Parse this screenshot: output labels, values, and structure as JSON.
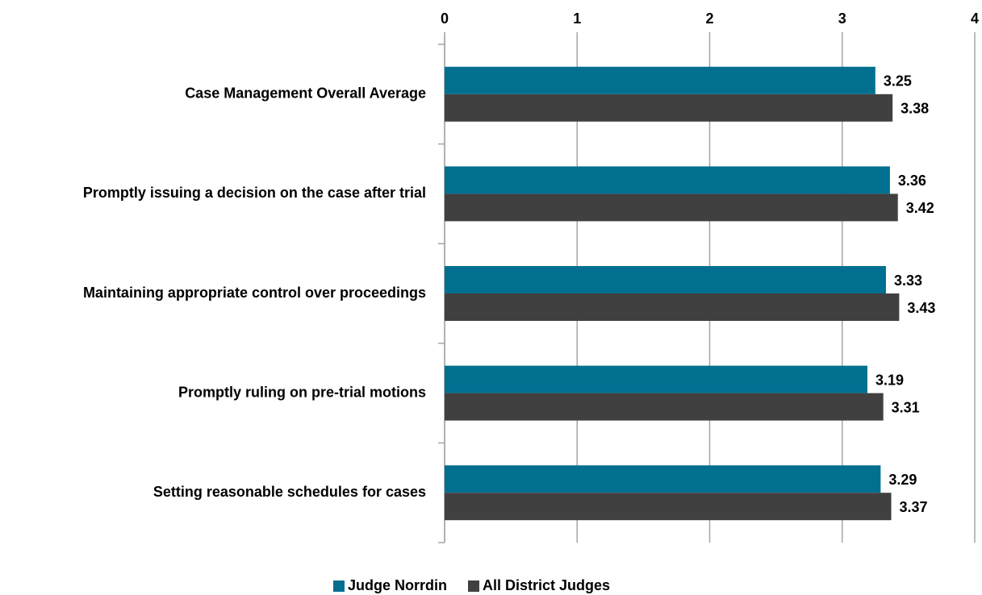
{
  "chart_data": {
    "type": "bar",
    "orientation": "horizontal",
    "categories": [
      "Case Management Overall Average",
      "Promptly issuing a decision on the case after trial",
      "Maintaining appropriate control over proceedings",
      "Promptly ruling on pre-trial motions",
      "Setting reasonable schedules for cases"
    ],
    "series": [
      {
        "name": "Judge Norrdin",
        "color": "#006f90",
        "values": [
          3.25,
          3.36,
          3.33,
          3.19,
          3.29
        ]
      },
      {
        "name": "All District Judges",
        "color": "#404040",
        "values": [
          3.38,
          3.42,
          3.43,
          3.31,
          3.37
        ]
      }
    ],
    "xlim": [
      0,
      4
    ],
    "xticks": [
      0,
      1,
      2,
      3,
      4
    ],
    "grid": true,
    "legend": "bottom"
  }
}
